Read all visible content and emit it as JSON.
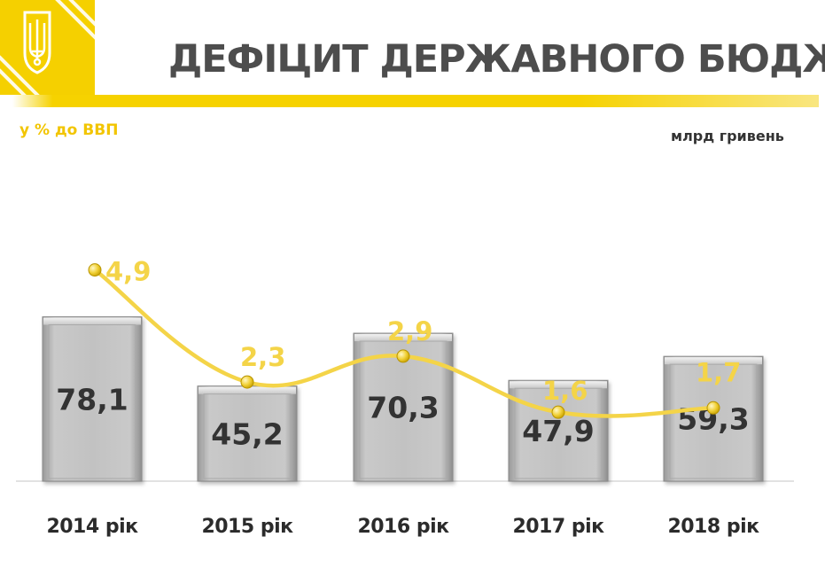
{
  "header": {
    "title": "ДЕФІЦИТ ДЕРЖАВНОГО БЮДЖЕТУ",
    "emblem_icon": "trident-coat-of-arms-icon",
    "accent_color": "#f5d000"
  },
  "chart_data": {
    "type": "bar",
    "categories": [
      "2014 рік",
      "2015 рік",
      "2016 рік",
      "2017 рік",
      "2018 рік"
    ],
    "series": [
      {
        "values": [
          78.1,
          45.2,
          70.3,
          47.9,
          59.3
        ],
        "labels": [
          "78,1",
          "45,2",
          "70,3",
          "47,9",
          "59,3"
        ],
        "unit": "млрд гривень",
        "color": "#bdbdbd"
      },
      {
        "type": "line",
        "values": [
          4.9,
          2.3,
          2.9,
          1.6,
          1.7
        ],
        "labels": [
          "4,9",
          "2,3",
          "2,9",
          "1,6",
          "1,7"
        ],
        "unit": "у % до ВВП",
        "color": "#f4d448",
        "smooth": true
      }
    ],
    "left_axis_title": "у % до ВВП",
    "right_axis_title": "млрд гривень",
    "bar_ylim": [
      0,
      80
    ],
    "line_ylim": [
      0,
      7.4
    ],
    "grid": false,
    "legend": "none"
  }
}
